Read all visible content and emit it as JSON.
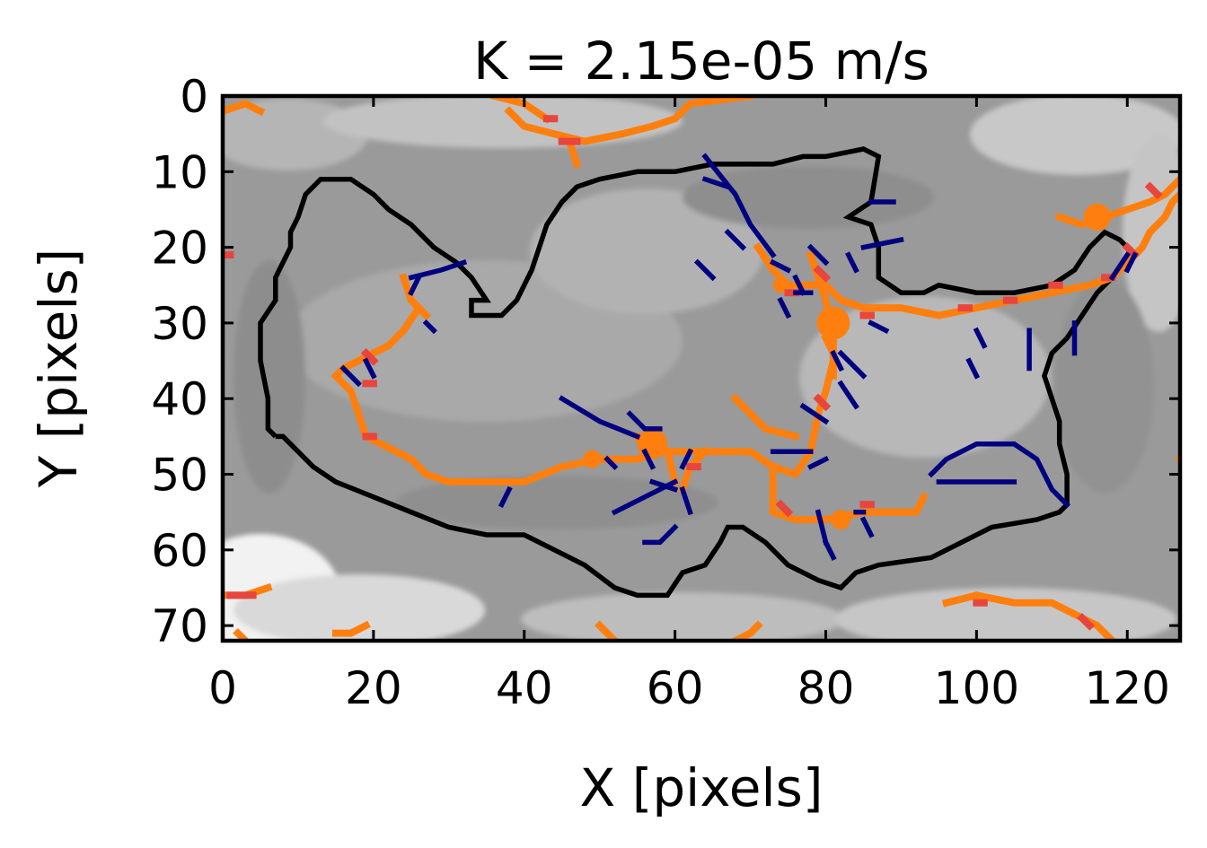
{
  "chart_data": {
    "type": "heatmap",
    "title": "K = 2.15e-05 m/s",
    "xlabel": "X [pixels]",
    "ylabel": "Y [pixels]",
    "xlim": [
      0,
      127
    ],
    "ylim": [
      72,
      0
    ],
    "xticks": [
      0,
      20,
      40,
      60,
      80,
      100,
      120
    ],
    "yticks": [
      0,
      10,
      20,
      30,
      40,
      50,
      60,
      70
    ],
    "grid": false,
    "legend": "none",
    "colors": {
      "background_map": "grayscale",
      "boundary": "#000000",
      "stream_orange": "#ff7f0e",
      "stream_red": "#e8453c",
      "stream_navy": "#000080"
    },
    "boundary_contour": [
      [
        7,
        45
      ],
      [
        8,
        45
      ],
      [
        10,
        47
      ],
      [
        12,
        49
      ],
      [
        15,
        51
      ],
      [
        20,
        53
      ],
      [
        25,
        55
      ],
      [
        30,
        57
      ],
      [
        35,
        58
      ],
      [
        40,
        58
      ],
      [
        44,
        60
      ],
      [
        48,
        62
      ],
      [
        52,
        65
      ],
      [
        55,
        66
      ],
      [
        59,
        66
      ],
      [
        61,
        63
      ],
      [
        64,
        62
      ],
      [
        66,
        59
      ],
      [
        67,
        57
      ],
      [
        69,
        57
      ],
      [
        72,
        59
      ],
      [
        75,
        62
      ],
      [
        79,
        64
      ],
      [
        82,
        65
      ],
      [
        84,
        63
      ],
      [
        87,
        62
      ],
      [
        94,
        61
      ],
      [
        98,
        59
      ],
      [
        102,
        57
      ],
      [
        108,
        56
      ],
      [
        111,
        55
      ],
      [
        112,
        54
      ],
      [
        112,
        50
      ],
      [
        111,
        46
      ],
      [
        111,
        43
      ],
      [
        110,
        40
      ],
      [
        109,
        37
      ],
      [
        110,
        34
      ],
      [
        112,
        32
      ],
      [
        114,
        29
      ],
      [
        116,
        26
      ],
      [
        118,
        24
      ],
      [
        120,
        22
      ],
      [
        121,
        21
      ],
      [
        119,
        19
      ],
      [
        117,
        18
      ],
      [
        115,
        20
      ],
      [
        113,
        23
      ],
      [
        110,
        25
      ],
      [
        105,
        26
      ],
      [
        100,
        26
      ],
      [
        95,
        25
      ],
      [
        93,
        26
      ],
      [
        90,
        26
      ],
      [
        87,
        24
      ],
      [
        87,
        20
      ],
      [
        86,
        17
      ],
      [
        83,
        16
      ],
      [
        86,
        14
      ],
      [
        87,
        8
      ],
      [
        85,
        7
      ],
      [
        80,
        8
      ],
      [
        77,
        8
      ],
      [
        73,
        9
      ],
      [
        70,
        9
      ],
      [
        65,
        9
      ],
      [
        60,
        10
      ],
      [
        55,
        10
      ],
      [
        50,
        11
      ],
      [
        47,
        12
      ],
      [
        45,
        14
      ],
      [
        43,
        17
      ],
      [
        42,
        20
      ],
      [
        41,
        23
      ],
      [
        40,
        25
      ],
      [
        39,
        27
      ],
      [
        37,
        29
      ],
      [
        35,
        29
      ],
      [
        33,
        29
      ],
      [
        33,
        27
      ],
      [
        35,
        27
      ],
      [
        33,
        24
      ],
      [
        31,
        22
      ],
      [
        28,
        20
      ],
      [
        25,
        17
      ],
      [
        22,
        15
      ],
      [
        20,
        13
      ],
      [
        17,
        11
      ],
      [
        13,
        11
      ],
      [
        11,
        13
      ],
      [
        10,
        16
      ],
      [
        9,
        18
      ],
      [
        9,
        20
      ],
      [
        8,
        22
      ],
      [
        7,
        24
      ],
      [
        7,
        27
      ],
      [
        5,
        30
      ],
      [
        5,
        35
      ],
      [
        6,
        40
      ],
      [
        6,
        44
      ],
      [
        7,
        45
      ]
    ],
    "streams_orange": [
      [
        [
          0,
          2
        ],
        [
          3,
          1
        ],
        [
          5,
          2
        ]
      ],
      [
        [
          38,
          2
        ],
        [
          40,
          4
        ],
        [
          44,
          5
        ],
        [
          48,
          6
        ],
        [
          53,
          5
        ],
        [
          57,
          4
        ],
        [
          60,
          3
        ],
        [
          62,
          1
        ],
        [
          70,
          0
        ]
      ],
      [
        [
          36,
          0
        ],
        [
          40,
          1
        ],
        [
          43,
          3
        ]
      ],
      [
        [
          46,
          6
        ],
        [
          47,
          9
        ]
      ],
      [
        [
          24,
          24
        ],
        [
          25,
          27
        ],
        [
          27,
          29
        ]
      ],
      [
        [
          26,
          28
        ],
        [
          24,
          31
        ],
        [
          22,
          33
        ],
        [
          20,
          34
        ],
        [
          18,
          35
        ],
        [
          16,
          36
        ],
        [
          15,
          37
        ],
        [
          17,
          39
        ],
        [
          18,
          42
        ],
        [
          19,
          45
        ],
        [
          21,
          46
        ],
        [
          23,
          47
        ],
        [
          25,
          48
        ],
        [
          27,
          50
        ],
        [
          30,
          51
        ],
        [
          35,
          51
        ],
        [
          40,
          51
        ],
        [
          45,
          49
        ],
        [
          50,
          48
        ],
        [
          55,
          48
        ],
        [
          58,
          47
        ],
        [
          62,
          47
        ],
        [
          66,
          47
        ],
        [
          70,
          47
        ],
        [
          73,
          49
        ],
        [
          76,
          50
        ],
        [
          78,
          47
        ],
        [
          79,
          42
        ],
        [
          80,
          39
        ],
        [
          81,
          35
        ],
        [
          81,
          31
        ],
        [
          80,
          27
        ],
        [
          79,
          24
        ],
        [
          78,
          21
        ]
      ],
      [
        [
          68,
          40
        ],
        [
          70,
          42
        ],
        [
          72,
          44
        ],
        [
          76,
          45
        ]
      ],
      [
        [
          64,
          47
        ],
        [
          62,
          49
        ],
        [
          61,
          52
        ]
      ],
      [
        [
          55,
          45
        ],
        [
          56,
          47
        ],
        [
          58,
          47
        ]
      ],
      [
        [
          59,
          47
        ],
        [
          60,
          51
        ]
      ],
      [
        [
          73,
          49
        ],
        [
          73,
          55
        ],
        [
          76,
          56
        ],
        [
          80,
          56
        ],
        [
          85,
          55
        ],
        [
          90,
          55
        ],
        [
          92,
          55
        ],
        [
          93,
          53
        ]
      ],
      [
        [
          71,
          20
        ],
        [
          73,
          23
        ],
        [
          75,
          25
        ],
        [
          80,
          25
        ],
        [
          82,
          27
        ],
        [
          85,
          28
        ],
        [
          90,
          28
        ],
        [
          95,
          29
        ],
        [
          100,
          28
        ],
        [
          105,
          27
        ],
        [
          110,
          26
        ],
        [
          115,
          25
        ],
        [
          118,
          24
        ],
        [
          120,
          22
        ],
        [
          122,
          20
        ],
        [
          123,
          18
        ],
        [
          125,
          16
        ],
        [
          126,
          14
        ],
        [
          127,
          13
        ]
      ],
      [
        [
          111,
          16
        ],
        [
          114,
          17
        ],
        [
          117,
          16
        ],
        [
          120,
          15
        ],
        [
          123,
          14
        ],
        [
          125,
          13
        ],
        [
          127,
          11
        ]
      ],
      [
        [
          80,
          32
        ],
        [
          81,
          34
        ],
        [
          81,
          37
        ]
      ],
      [
        [
          127,
          48
        ],
        [
          128,
          51
        ]
      ],
      [
        [
          96,
          67
        ],
        [
          100,
          66
        ],
        [
          105,
          67
        ],
        [
          110,
          67
        ],
        [
          114,
          69
        ],
        [
          116,
          70
        ],
        [
          118,
          72
        ]
      ],
      [
        [
          0,
          66
        ],
        [
          3,
          66
        ],
        [
          6,
          65
        ]
      ],
      [
        [
          15,
          71
        ],
        [
          17,
          71
        ],
        [
          19,
          70
        ]
      ],
      [
        [
          50,
          70
        ],
        [
          52,
          72
        ]
      ],
      [
        [
          68,
          72
        ],
        [
          70,
          71
        ],
        [
          71,
          70
        ]
      ],
      [
        [
          2,
          71
        ],
        [
          3,
          72
        ]
      ]
    ],
    "blobs_orange": [
      [
        81,
        30,
        2.2
      ],
      [
        57,
        46,
        2.0
      ],
      [
        116,
        16,
        1.8
      ],
      [
        49,
        48,
        1.2
      ],
      [
        74,
        25,
        1.0
      ],
      [
        82,
        56,
        1.3
      ]
    ],
    "streams_red": [
      [
        [
          19,
          34
        ],
        [
          20,
          35
        ]
      ],
      [
        [
          19,
          38
        ],
        [
          20,
          38
        ]
      ],
      [
        [
          1,
          66
        ],
        [
          4,
          66
        ]
      ],
      [
        [
          75,
          26
        ],
        [
          76,
          26
        ]
      ],
      [
        [
          79,
          23
        ],
        [
          80,
          24
        ]
      ],
      [
        [
          45,
          6
        ],
        [
          47,
          6
        ]
      ],
      [
        [
          62,
          49
        ],
        [
          63,
          49
        ]
      ],
      [
        [
          74,
          54
        ],
        [
          75,
          55
        ]
      ],
      [
        [
          85,
          54
        ],
        [
          86,
          54
        ]
      ],
      [
        [
          104,
          27
        ],
        [
          105,
          27
        ]
      ],
      [
        [
          98,
          28
        ],
        [
          99,
          28
        ]
      ],
      [
        [
          110,
          25
        ],
        [
          111,
          25
        ]
      ],
      [
        [
          117,
          24
        ],
        [
          118,
          24
        ]
      ],
      [
        [
          120,
          20
        ],
        [
          121,
          21
        ]
      ],
      [
        [
          123,
          12
        ],
        [
          124,
          13
        ]
      ],
      [
        [
          100,
          67
        ],
        [
          101,
          67
        ]
      ],
      [
        [
          43,
          3
        ],
        [
          44,
          3
        ]
      ],
      [
        [
          0,
          21
        ],
        [
          1,
          21
        ]
      ],
      [
        [
          85,
          29
        ],
        [
          86,
          29
        ]
      ],
      [
        [
          79,
          40
        ],
        [
          80,
          41
        ]
      ],
      [
        [
          19,
          45
        ],
        [
          20,
          45
        ]
      ],
      [
        [
          114,
          69
        ],
        [
          115,
          70
        ]
      ]
    ],
    "streams_navy": [
      [
        [
          32,
          22
        ],
        [
          29,
          23
        ],
        [
          25,
          24
        ]
      ],
      [
        [
          26,
          24
        ],
        [
          25,
          26
        ]
      ],
      [
        [
          27,
          30
        ],
        [
          28,
          31
        ]
      ],
      [
        [
          16,
          36
        ],
        [
          18,
          38
        ]
      ],
      [
        [
          19,
          35
        ],
        [
          20,
          37
        ]
      ],
      [
        [
          37,
          54
        ],
        [
          38,
          52
        ]
      ],
      [
        [
          45,
          40
        ],
        [
          50,
          43
        ],
        [
          55,
          45
        ]
      ],
      [
        [
          58,
          44
        ],
        [
          56,
          44
        ],
        [
          54,
          42
        ]
      ],
      [
        [
          52,
          55
        ],
        [
          56,
          53
        ],
        [
          60,
          51
        ]
      ],
      [
        [
          60,
          57
        ],
        [
          58,
          59
        ],
        [
          56,
          59
        ]
      ],
      [
        [
          61,
          52
        ],
        [
          62,
          55
        ]
      ],
      [
        [
          57,
          51
        ],
        [
          60,
          52
        ]
      ],
      [
        [
          61,
          49
        ],
        [
          62,
          47
        ]
      ],
      [
        [
          56,
          47
        ],
        [
          57,
          49
        ]
      ],
      [
        [
          51,
          48
        ],
        [
          52,
          49
        ]
      ],
      [
        [
          73,
          47
        ],
        [
          78,
          47
        ]
      ],
      [
        [
          78,
          49
        ],
        [
          80,
          48
        ]
      ],
      [
        [
          64,
          8
        ],
        [
          68,
          13
        ],
        [
          70,
          17
        ],
        [
          73,
          21
        ]
      ],
      [
        [
          64,
          11
        ],
        [
          67,
          12
        ]
      ],
      [
        [
          67,
          18
        ],
        [
          69,
          20
        ]
      ],
      [
        [
          63,
          22
        ],
        [
          65,
          24
        ]
      ],
      [
        [
          73,
          22
        ],
        [
          75,
          23
        ]
      ],
      [
        [
          76,
          24
        ],
        [
          77,
          26
        ]
      ],
      [
        [
          76,
          26
        ],
        [
          78,
          26
        ]
      ],
      [
        [
          74,
          27
        ],
        [
          75,
          29
        ]
      ],
      [
        [
          78,
          20
        ],
        [
          80,
          22
        ]
      ],
      [
        [
          83,
          21
        ],
        [
          84,
          23
        ]
      ],
      [
        [
          85,
          20
        ],
        [
          90,
          19
        ]
      ],
      [
        [
          86,
          14
        ],
        [
          89,
          14
        ]
      ],
      [
        [
          82,
          34
        ],
        [
          85,
          37
        ]
      ],
      [
        [
          86,
          30
        ],
        [
          88,
          31
        ]
      ],
      [
        [
          82,
          38
        ],
        [
          84,
          41
        ]
      ],
      [
        [
          77,
          41
        ],
        [
          80,
          43
        ]
      ],
      [
        [
          81,
          34
        ],
        [
          82,
          36
        ]
      ],
      [
        [
          100,
          31
        ],
        [
          101,
          33
        ]
      ],
      [
        [
          107,
          31
        ],
        [
          107,
          36
        ]
      ],
      [
        [
          99,
          35
        ],
        [
          100,
          37
        ]
      ],
      [
        [
          94,
          50
        ],
        [
          96,
          48
        ],
        [
          100,
          46
        ],
        [
          105,
          46
        ],
        [
          108,
          48
        ],
        [
          110,
          52
        ],
        [
          112,
          54
        ]
      ],
      [
        [
          95,
          51
        ],
        [
          100,
          51
        ],
        [
          105,
          51
        ]
      ],
      [
        [
          85,
          56
        ],
        [
          86,
          58
        ]
      ],
      [
        [
          84,
          55
        ],
        [
          85,
          55
        ]
      ],
      [
        [
          79,
          55
        ],
        [
          80,
          59
        ]
      ],
      [
        [
          80,
          59
        ],
        [
          81,
          61
        ]
      ],
      [
        [
          118,
          24
        ],
        [
          120,
          21
        ]
      ],
      [
        [
          121,
          21
        ],
        [
          120,
          23
        ]
      ],
      [
        [
          113,
          30
        ],
        [
          113,
          34
        ]
      ]
    ]
  }
}
